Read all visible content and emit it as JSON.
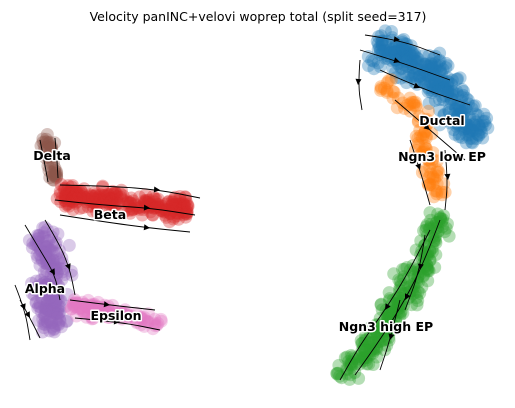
{
  "chart_data": {
    "type": "scatter",
    "title": "Velocity panINC+velovi woprep total (split seed=317)",
    "xlabel": "",
    "ylabel": "",
    "grid": false,
    "axes_visible": false,
    "overlay": "velocity stream arrows",
    "clusters": [
      {
        "label": "Delta",
        "color": "#8c564b"
      },
      {
        "label": "Beta",
        "color": "#d62728"
      },
      {
        "label": "Alpha",
        "color": "#9467bd"
      },
      {
        "label": "Epsilon",
        "color": "#e377c2"
      },
      {
        "label": "Ductal",
        "color": "#1f77b4"
      },
      {
        "label": "Ngn3 low EP",
        "color": "#ff7f0e"
      },
      {
        "label": "Ngn3 high EP",
        "color": "#2ca02c"
      }
    ]
  }
}
